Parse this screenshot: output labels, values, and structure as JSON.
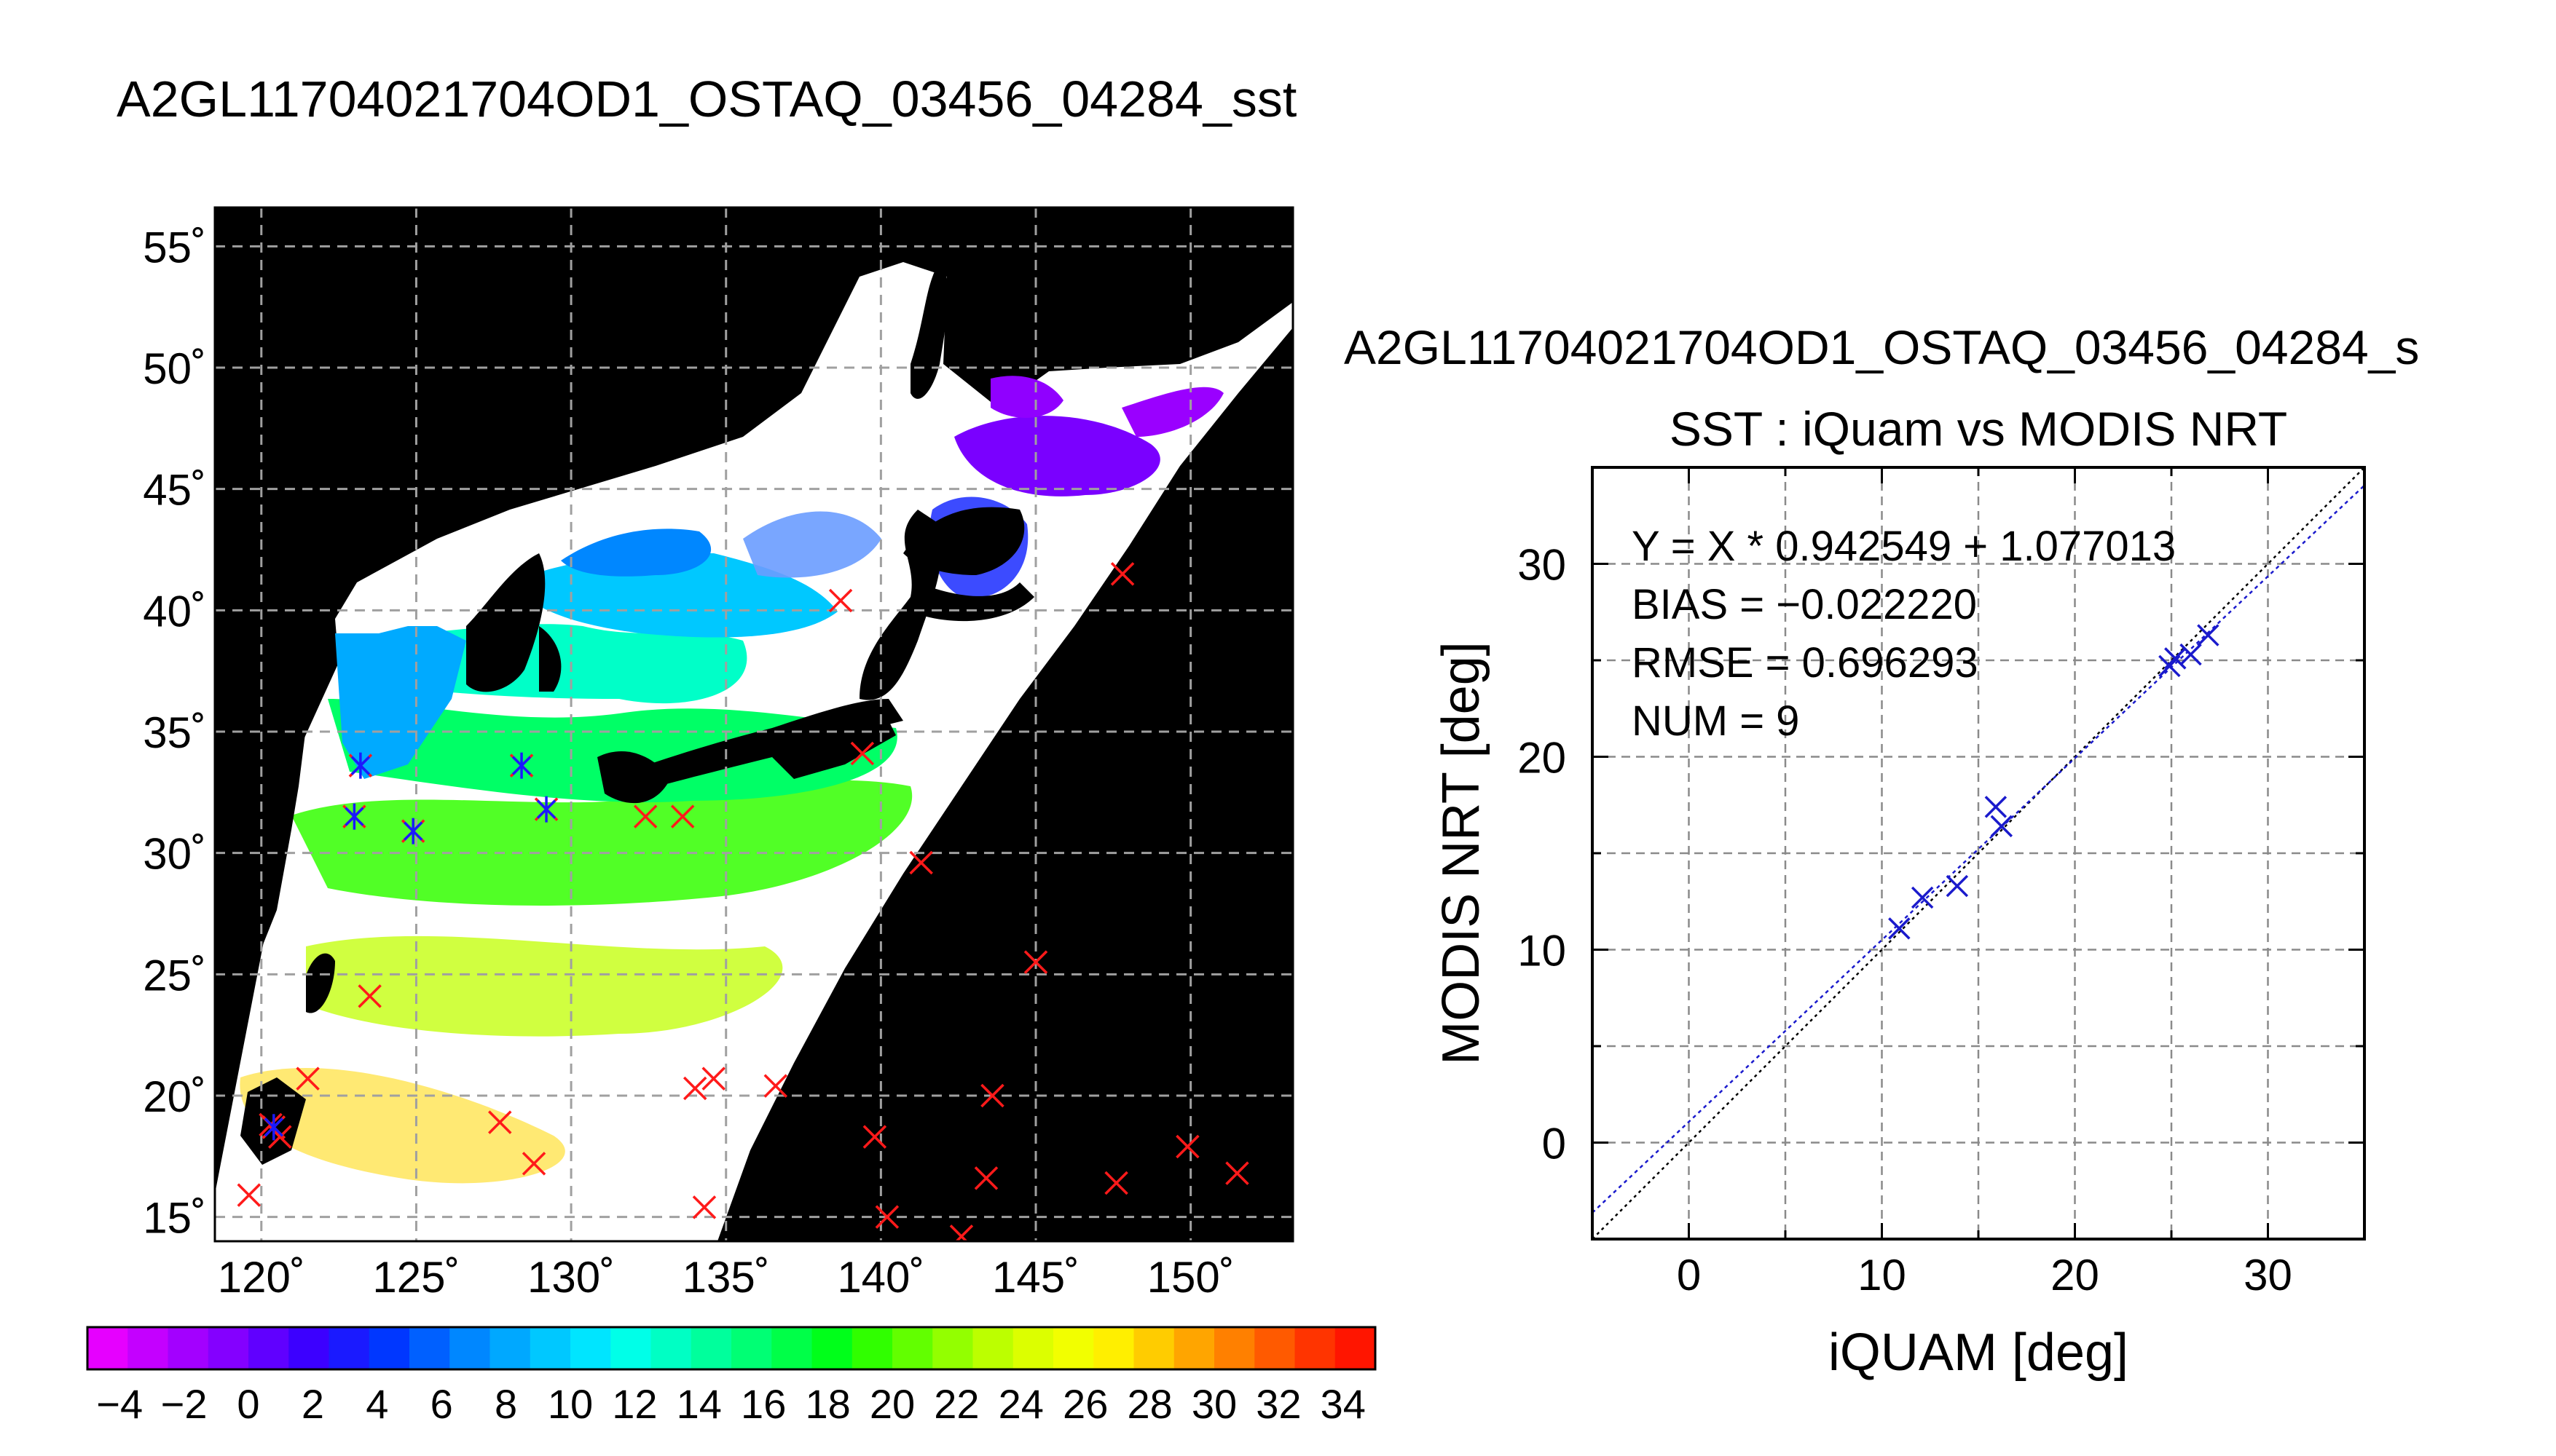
{
  "main_title": "A2GL11704021704OD1_OSTAQ_03456_04284_sst",
  "map": {
    "lat_ticks": [
      "15˚",
      "20˚",
      "25˚",
      "30˚",
      "35˚",
      "40˚",
      "45˚",
      "50˚",
      "55˚"
    ],
    "lon_ticks": [
      "120˚",
      "125˚",
      "130˚",
      "135˚",
      "140˚",
      "145˚",
      "150˚"
    ],
    "lat_range": [
      14,
      56.6
    ],
    "lon_range": [
      118.5,
      153.3
    ],
    "matched_buoys": [
      [
        120.4,
        18.7
      ],
      [
        123.2,
        33.6
      ],
      [
        123.0,
        31.5
      ],
      [
        124.9,
        30.9
      ],
      [
        128.4,
        33.6
      ],
      [
        129.2,
        31.8
      ]
    ],
    "unmatched_buoys": [
      [
        119.6,
        15.9
      ],
      [
        120.6,
        18.3
      ],
      [
        120.3,
        18.8
      ],
      [
        121.5,
        20.7
      ],
      [
        123.5,
        24.1
      ],
      [
        127.7,
        18.9
      ],
      [
        128.8,
        17.2
      ],
      [
        132.4,
        31.5
      ],
      [
        133.6,
        31.5
      ],
      [
        134.0,
        20.3
      ],
      [
        134.6,
        20.7
      ],
      [
        136.6,
        20.4
      ],
      [
        134.3,
        15.4
      ],
      [
        138.7,
        40.4
      ],
      [
        139.4,
        34.1
      ],
      [
        139.8,
        18.3
      ],
      [
        140.2,
        15.0
      ],
      [
        141.3,
        29.6
      ],
      [
        142.6,
        14.2
      ],
      [
        143.4,
        16.6
      ],
      [
        143.6,
        20.0
      ],
      [
        145.0,
        25.5
      ],
      [
        147.6,
        16.4
      ],
      [
        147.8,
        41.5
      ],
      [
        149.9,
        17.9
      ],
      [
        151.5,
        16.8
      ]
    ],
    "marker_colors": {
      "unmatched": "#ff1a1a",
      "matched": "#1a1aff"
    }
  },
  "colorbar": {
    "tick_labels": [
      "−4",
      "−2",
      "0",
      "2",
      "4",
      "6",
      "8",
      "10",
      "12",
      "14",
      "16",
      "18",
      "20",
      "22",
      "24",
      "26",
      "28",
      "30",
      "32",
      "34"
    ],
    "range": [
      -5,
      35
    ],
    "colors": [
      "#e600ff",
      "#c400ff",
      "#a300ff",
      "#8400ff",
      "#6000ff",
      "#3c00ff",
      "#1a1aff",
      "#0037ff",
      "#0060ff",
      "#0087ff",
      "#00a8ff",
      "#00c8ff",
      "#00e5ff",
      "#00ffe8",
      "#00ffc4",
      "#00ff9c",
      "#00ff74",
      "#00ff48",
      "#00ff1a",
      "#30ff00",
      "#62ff00",
      "#93ff00",
      "#bcff00",
      "#dcff00",
      "#f2ff00",
      "#ffef00",
      "#ffcc00",
      "#ffa500",
      "#ff8000",
      "#ff5a00",
      "#ff3400",
      "#ff1500"
    ]
  },
  "scatter_suptitle": "A2GL11704021704OD1_OSTAQ_03456_04284_s",
  "chart_data": {
    "type": "scatter",
    "title": "SST : iQuam vs MODIS NRT",
    "xlabel": "iQUAM [deg]",
    "ylabel": "MODIS NRT [deg]",
    "xlim": [
      -5,
      35
    ],
    "ylim": [
      -5,
      35
    ],
    "xticks": [
      "0",
      "10",
      "20",
      "30"
    ],
    "yticks": [
      "0",
      "10",
      "20",
      "30"
    ],
    "grid": true,
    "points": [
      [
        10.9,
        11.1
      ],
      [
        12.1,
        12.7
      ],
      [
        13.9,
        13.3
      ],
      [
        15.9,
        17.4
      ],
      [
        16.2,
        16.4
      ],
      [
        24.9,
        24.7
      ],
      [
        25.2,
        25.1
      ],
      [
        26.0,
        25.3
      ],
      [
        26.9,
        26.3
      ]
    ],
    "fit": {
      "slope": 0.942549,
      "intercept": 1.077013
    },
    "annotations": [
      "Y = X * 0.942549 + 1.077013",
      "BIAS = −0.022220",
      "RMSE = 0.696293",
      "NUM = 9"
    ],
    "colors": {
      "points": "#1a1acc",
      "fit": "#1a1acc",
      "identity": "#000000"
    }
  }
}
